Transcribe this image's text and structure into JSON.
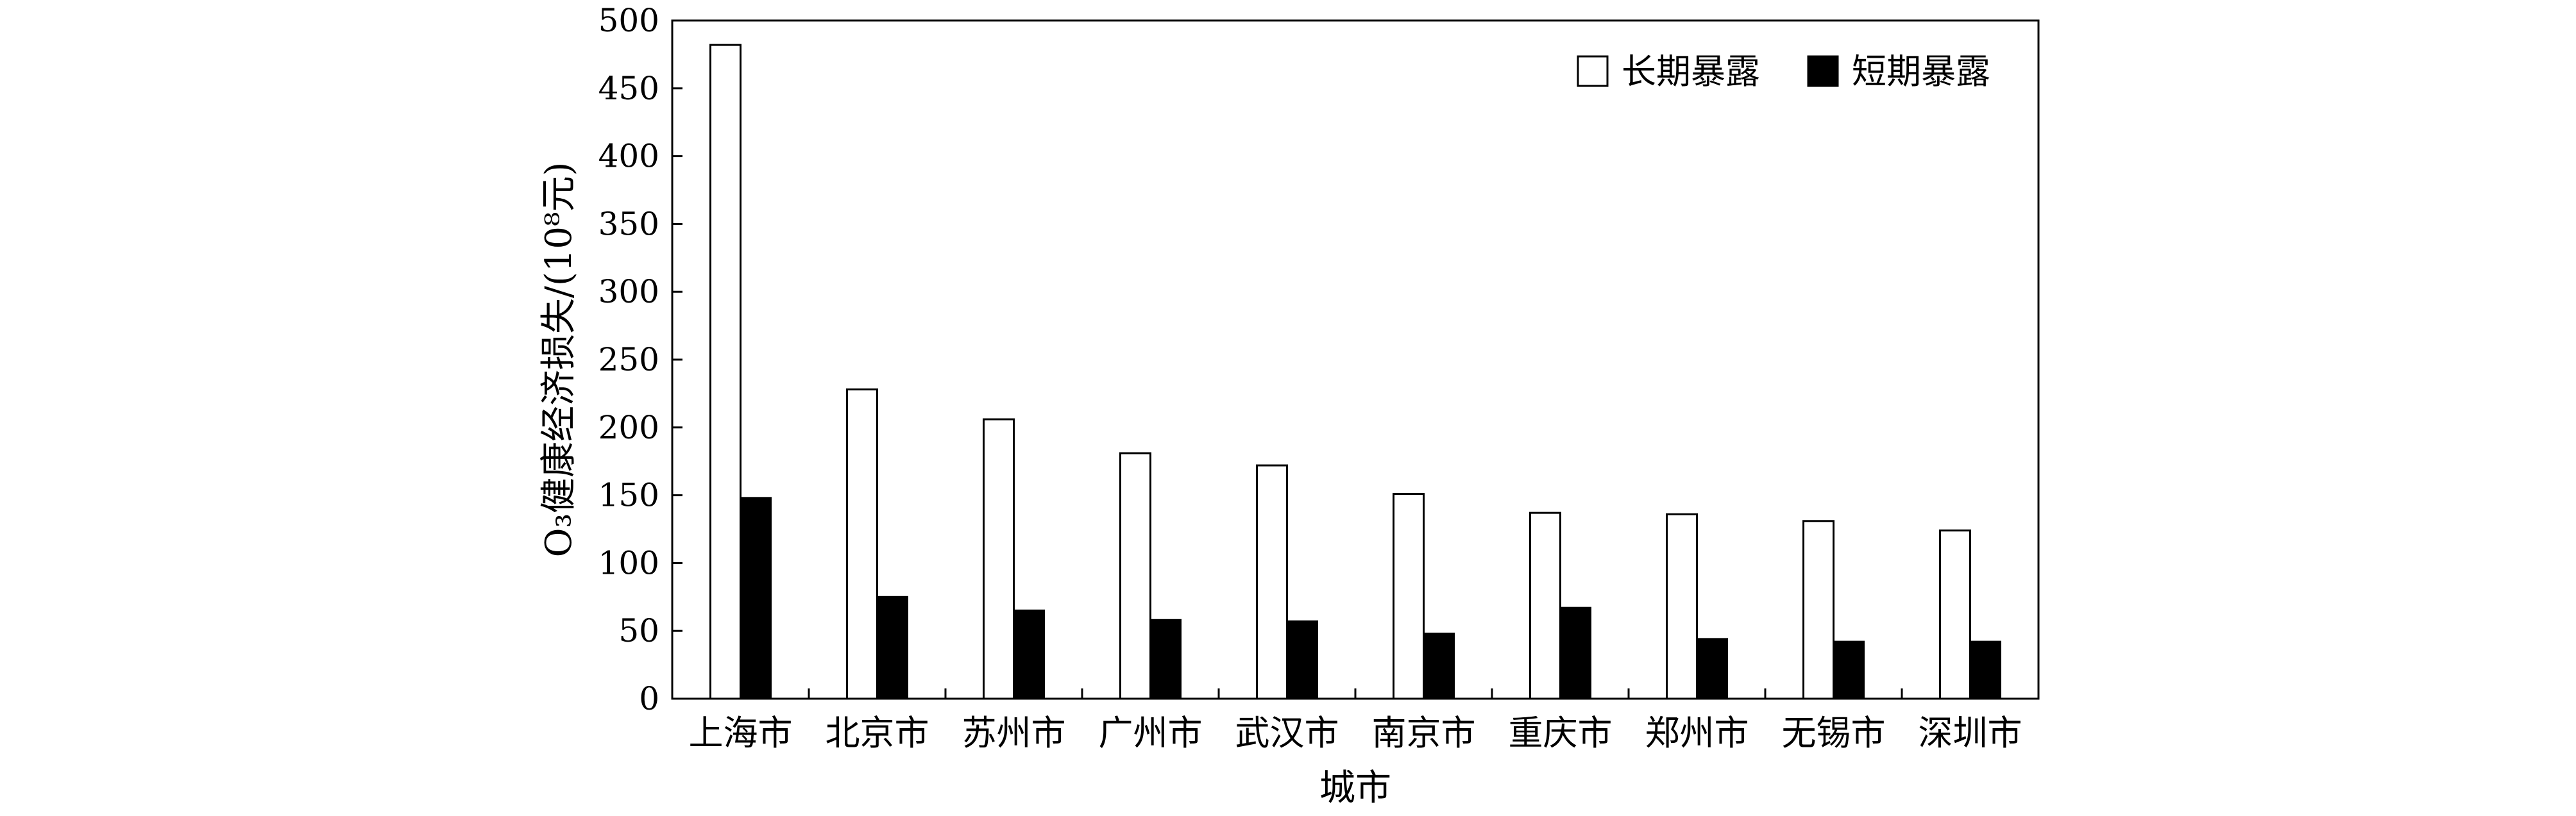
{
  "chart_data": {
    "type": "bar",
    "xlabel": "城市",
    "ylabel": "O₃健康经济损失/(10⁸元)",
    "ylim": [
      0,
      500
    ],
    "yticks": [
      0,
      50,
      100,
      150,
      200,
      250,
      300,
      350,
      400,
      450,
      500
    ],
    "grid": false,
    "legend_position": "top-right",
    "categories": [
      "上海市",
      "北京市",
      "苏州市",
      "广州市",
      "武汉市",
      "南京市",
      "重庆市",
      "郑州市",
      "无锡市",
      "深圳市"
    ],
    "series": [
      {
        "name": "长期暴露",
        "fill": "#ffffff",
        "values": [
          482,
          228,
          206,
          181,
          172,
          151,
          137,
          136,
          131,
          124
        ]
      },
      {
        "name": "短期暴露",
        "fill": "#000000",
        "values": [
          148,
          75,
          65,
          58,
          57,
          48,
          67,
          44,
          42,
          42
        ]
      }
    ]
  }
}
